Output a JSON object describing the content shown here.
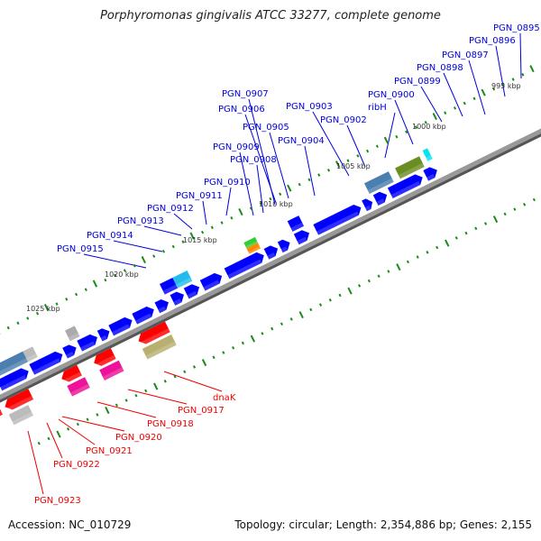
{
  "title": "Porphyromonas gingivalis ATCC 33277, complete genome",
  "footer": {
    "accession": "Accession: NC_010729",
    "summary": "Topology: circular; Length: 2,354,886 bp; Genes: 2,155"
  },
  "colors": {
    "forward_label": "#0000dd",
    "reverse_label": "#ee0000",
    "backbone": "#888888",
    "tick": "#1a8a1a",
    "cds_forward": "#0000ff",
    "cds_reverse": "#ff0000"
  },
  "kbp_labels": [
    "995 kbp",
    "1000 kbp",
    "1005 kbp",
    "1010 kbp",
    "1015 kbp",
    "1020 kbp",
    "1025 kbp"
  ],
  "forward_genes": [
    "PGN_0895",
    "PGN_0896",
    "PGN_0897",
    "PGN_0898",
    "PGN_0899",
    "PGN_0900",
    "ribH",
    "PGN_0902",
    "PGN_0903",
    "PGN_0904",
    "PGN_0905",
    "PGN_0906",
    "PGN_0907",
    "PGN_0908",
    "PGN_0909",
    "PGN_0910",
    "PGN_0911",
    "PGN_0912",
    "PGN_0913",
    "PGN_0914",
    "PGN_0915"
  ],
  "reverse_genes": [
    "dnaK",
    "PGN_0917",
    "PGN_0918",
    "PGN_0920",
    "PGN_0921",
    "PGN_0922",
    "PGN_0923"
  ]
}
